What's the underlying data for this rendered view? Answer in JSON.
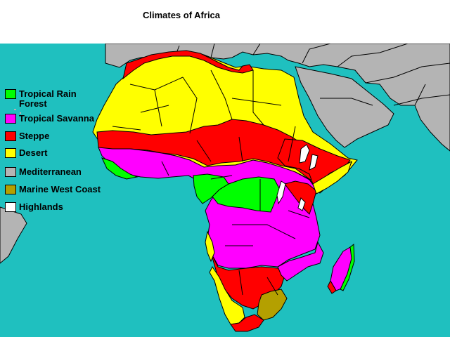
{
  "title": "Climates of Africa",
  "colors": {
    "ocean": "#1fc0bf",
    "land_other": "#b4b4b4",
    "tropical_rain_forest": "#00ff00",
    "tropical_savanna": "#ff00ff",
    "steppe": "#ff0000",
    "desert": "#ffff00",
    "mediterranean": "#b4b4b4",
    "marine_west_coast": "#b4a000",
    "highlands": "#ffffff"
  },
  "legend": [
    {
      "key": "tropical-rain-forest",
      "label": "Tropical Rain\n  Forest",
      "color": "#00ff00"
    },
    {
      "key": "tropical-savanna",
      "label": "Tropical Savanna",
      "color": "#ff00ff"
    },
    {
      "key": "steppe",
      "label": "Steppe",
      "color": "#ff0000"
    },
    {
      "key": "desert",
      "label": "Desert",
      "color": "#ffff00"
    },
    {
      "key": "mediterranean",
      "label": "Mediterranean",
      "color": "#b4b4b4"
    },
    {
      "key": "marine-west-coast",
      "label": "Marine West Coast",
      "color": "#b4a000"
    },
    {
      "key": "highlands",
      "label": "Highlands",
      "color": "#ffffff"
    }
  ]
}
